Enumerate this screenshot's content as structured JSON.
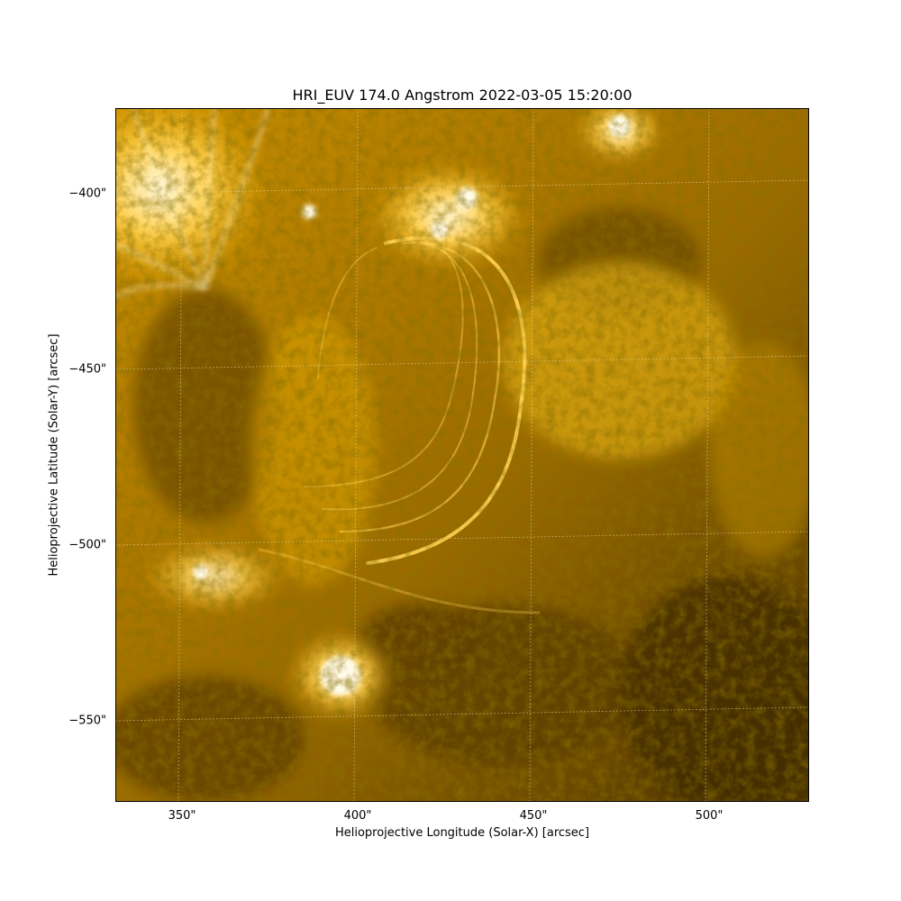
{
  "figure": {
    "title": "HRI_EUV 174.0 Angstrom 2022-03-05 15:20:00",
    "xlabel": "Helioprojective Longitude (Solar-X) [arcsec]",
    "ylabel": "Helioprojective Latitude (Solar-Y) [arcsec]",
    "xticks": [
      "350\"",
      "400\"",
      "450\"",
      "500\""
    ],
    "yticks": [
      "−400\"",
      "−450\"",
      "−500\"",
      "−550\""
    ],
    "colors": {
      "bright": "#fff4c8",
      "mid": "#e8a800",
      "dark": "#4a3200",
      "grid": "#e8d9a0"
    }
  }
}
